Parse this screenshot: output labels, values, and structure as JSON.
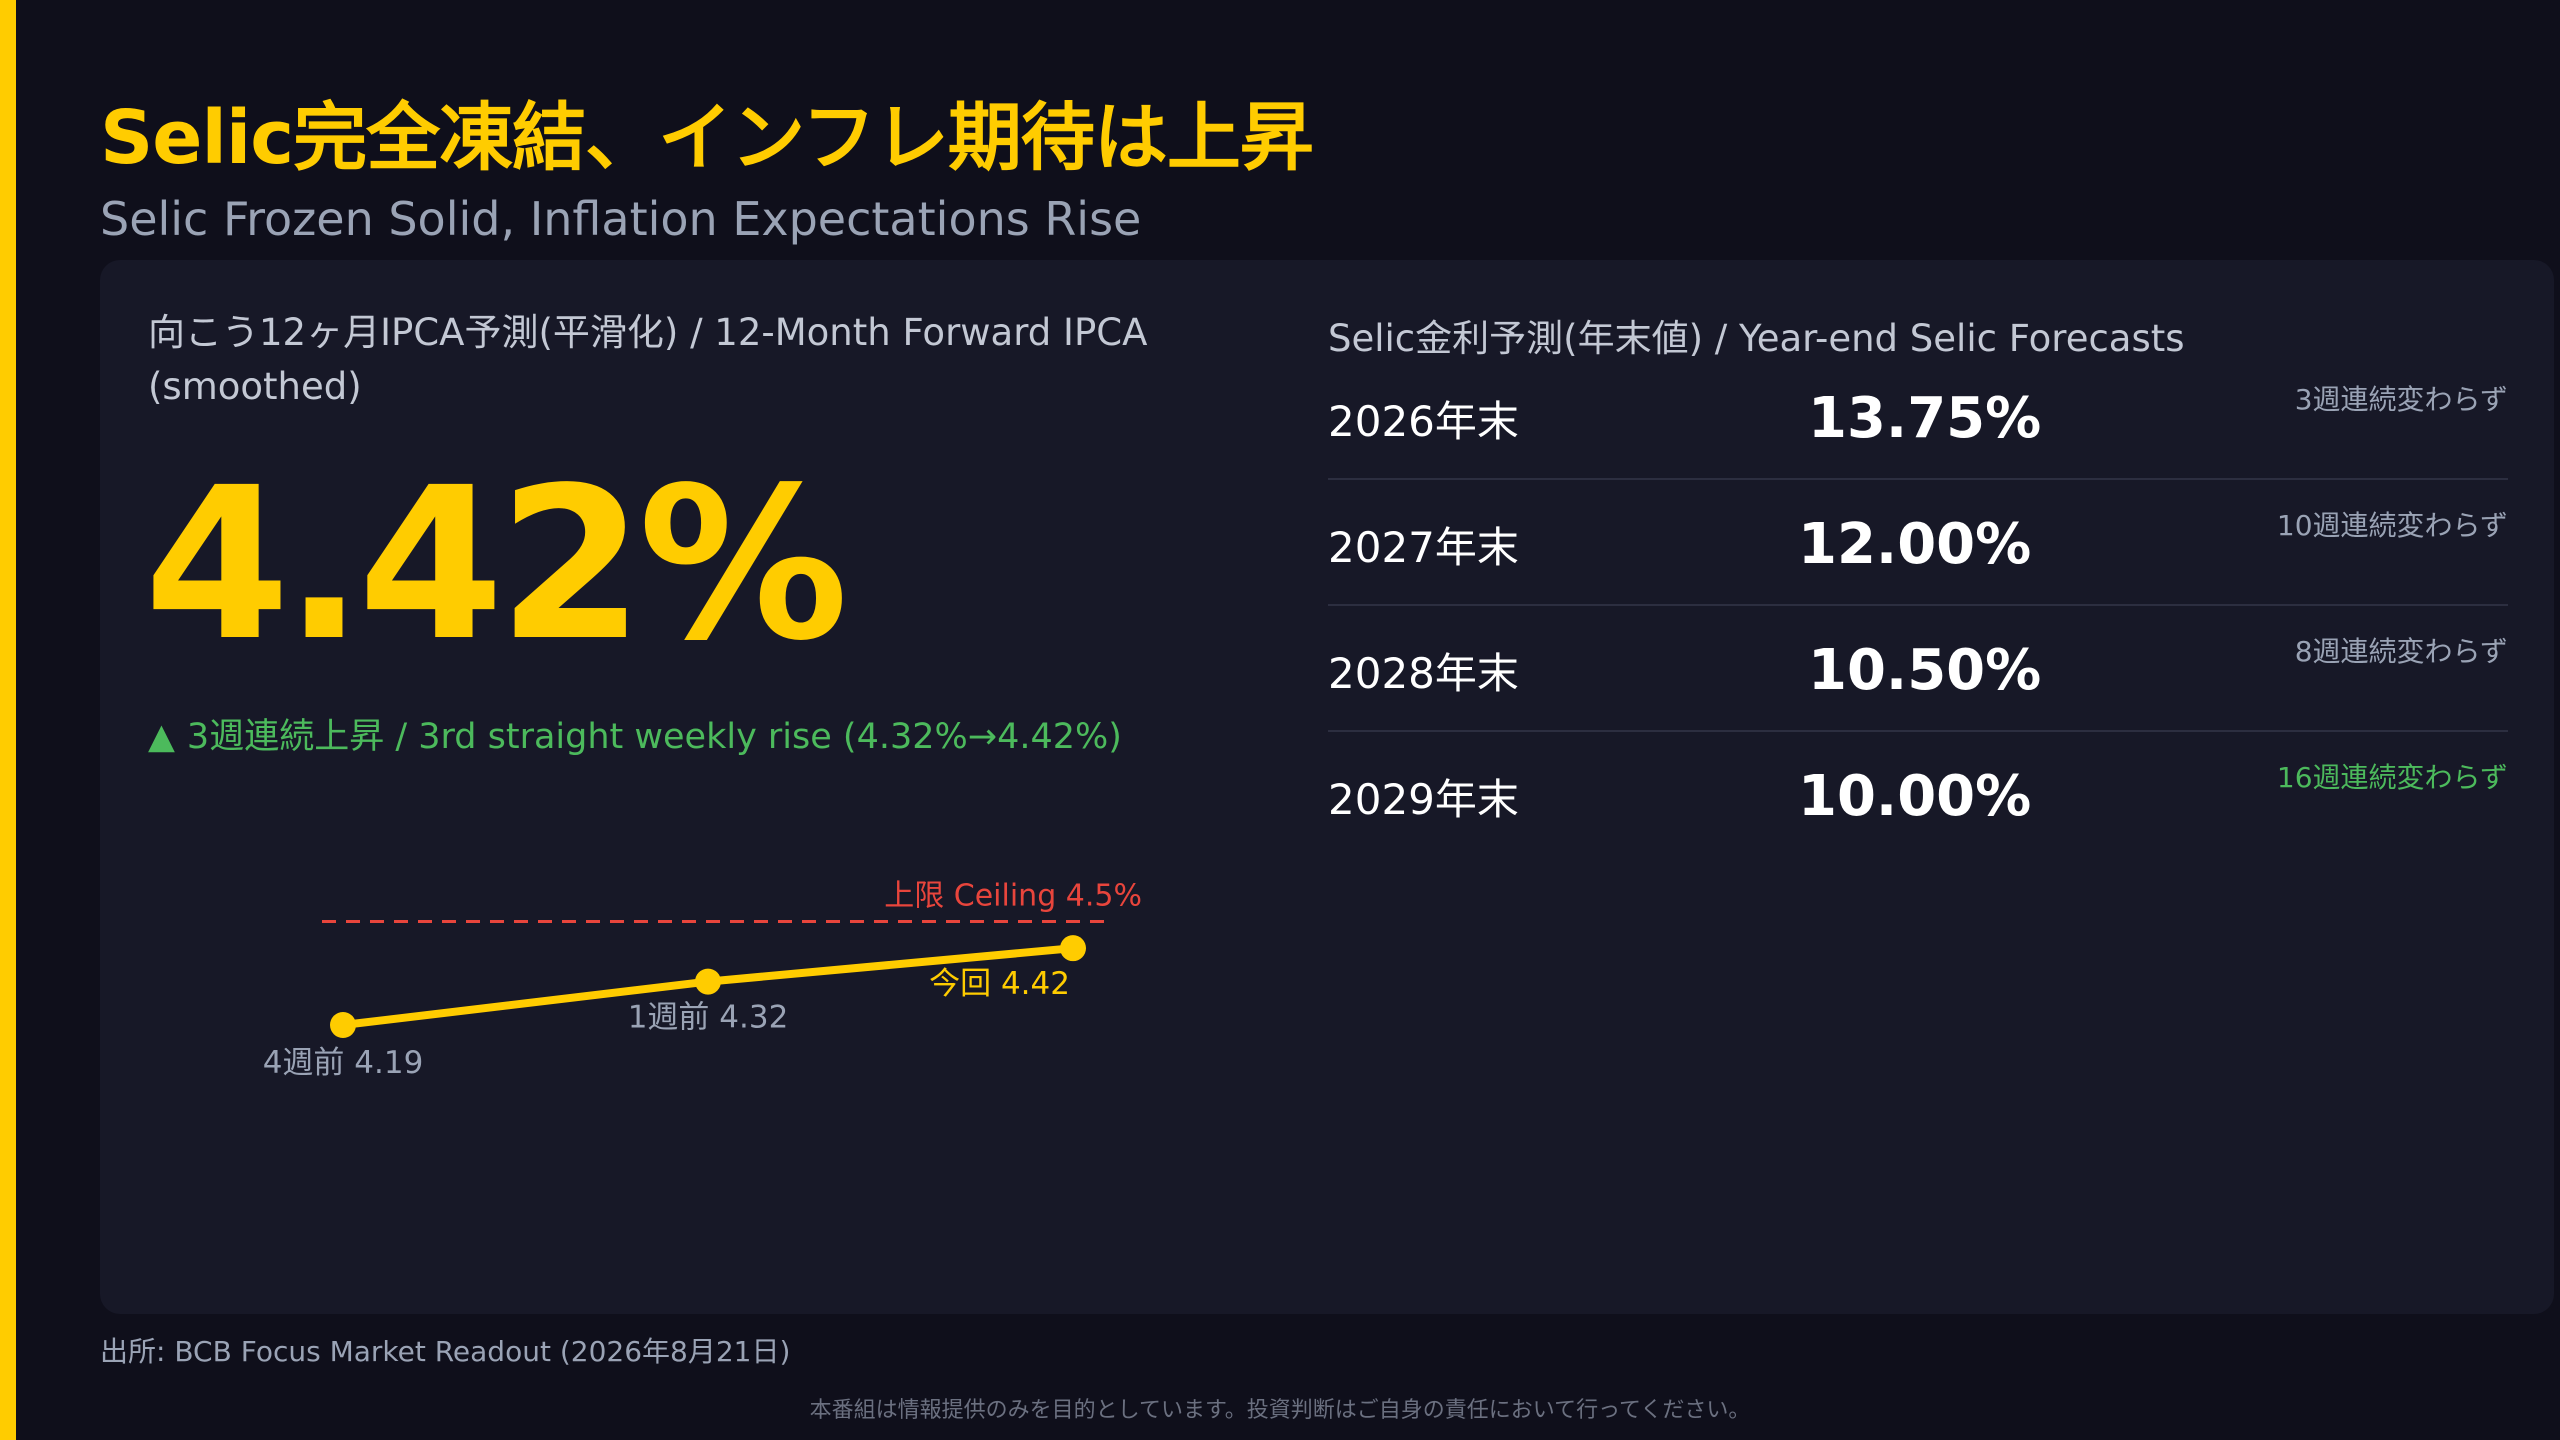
{
  "header": {
    "title": "Selic完全凍結、インフレ期待は上昇",
    "subtitle": "Selic Frozen Solid, Inflation Expectations Rise"
  },
  "ipca": {
    "label": "向こう12ヶ月IPCA予測(平滑化) / 12-Month Forward IPCA (smoothed)",
    "value": "4.42%",
    "trend_icon": "▲",
    "trend_text": "3週連続上昇 / 3rd straight weekly rise (4.32%→4.42%)"
  },
  "chart_data": {
    "type": "line",
    "categories": [
      "4週前",
      "1週前",
      "今回"
    ],
    "series": [
      {
        "values": [
          4.19,
          4.32,
          4.42
        ]
      }
    ],
    "point_labels": [
      "4週前 4.19",
      "1週前 4.32",
      "今回 4.42"
    ],
    "reference_line": {
      "value": 4.5,
      "label": "上限 Ceiling 4.5%"
    },
    "colors": {
      "line": "#ffcc00",
      "ceiling": "#e8453c",
      "label": "#9aa3b5"
    }
  },
  "selic": {
    "title": "Selic金利予測(年末値) / Year-end Selic Forecasts",
    "rows": [
      {
        "year": "2026年末",
        "rate": "13.75%",
        "note": "3週連続変わらず"
      },
      {
        "year": "2027年末",
        "rate": "12.00%",
        "note": "10週連続変わらず"
      },
      {
        "year": "2028年末",
        "rate": "10.50%",
        "note": "8週連続変わらず"
      },
      {
        "year": "2029年末",
        "rate": "10.00%",
        "note": "16週連続変わらず"
      }
    ]
  },
  "footer": {
    "source": "出所: BCB Focus Market Readout (2026年8月21日)",
    "disclaimer": "本番組は情報提供のみを目的としています。投資判断はご自身の責任において行ってください。"
  },
  "colors": {
    "accent": "#ffcc00",
    "positive": "#4cba5c",
    "ceiling": "#e8453c",
    "background": "#0f0f1b",
    "panel": "#171827"
  }
}
